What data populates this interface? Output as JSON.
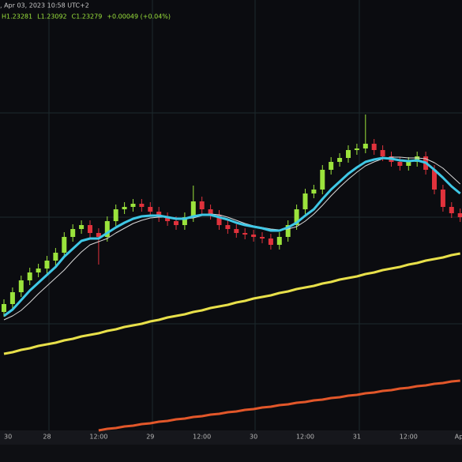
{
  "chart_data": {
    "type": "candlestick",
    "subtitle": ", Apr 03, 2023 10:58 UTC+2",
    "ohlc_header": [
      "H1.23281",
      "L1.23092",
      "C1.23279",
      "+0.00049 (+0.04%)"
    ],
    "categories": [
      "30",
      null,
      null,
      null,
      null,
      "28",
      null,
      null,
      null,
      null,
      null,
      "12:00",
      null,
      null,
      null,
      null,
      null,
      "29",
      null,
      null,
      null,
      null,
      null,
      "12:00",
      null,
      null,
      null,
      null,
      null,
      "30",
      null,
      null,
      null,
      null,
      null,
      "12:00",
      null,
      null,
      null,
      null,
      null,
      "31",
      null,
      null,
      null,
      null,
      null,
      "12:00",
      null,
      null,
      null,
      null,
      null,
      "Apr"
    ],
    "open": [
      1.215,
      1.216,
      1.2175,
      1.219,
      1.22,
      1.2205,
      1.2215,
      1.2225,
      1.2245,
      1.2255,
      1.226,
      1.225,
      1.2245,
      1.2265,
      1.228,
      1.2283,
      1.2287,
      1.2283,
      1.2277,
      1.227,
      1.2265,
      1.226,
      1.227,
      1.229,
      1.228,
      1.2273,
      1.226,
      1.2255,
      1.225,
      1.2248,
      1.2245,
      1.2243,
      1.2235,
      1.2245,
      1.226,
      1.228,
      1.23,
      1.2305,
      1.233,
      1.234,
      1.2345,
      1.2355,
      1.2357,
      1.2363,
      1.2355,
      1.2347,
      1.234,
      1.2335,
      1.234,
      1.2347,
      1.233,
      1.2305,
      1.2283,
      1.2275
    ],
    "high": [
      1.2166,
      1.2181,
      1.2196,
      1.2206,
      1.2211,
      1.2221,
      1.2231,
      1.2251,
      1.2261,
      1.2266,
      1.2266,
      1.2256,
      1.2271,
      1.2286,
      1.2289,
      1.2293,
      1.2293,
      1.2289,
      1.2283,
      1.2276,
      1.2271,
      1.2276,
      1.231,
      1.2296,
      1.2286,
      1.2279,
      1.2266,
      1.2261,
      1.2256,
      1.2254,
      1.2251,
      1.2249,
      1.2251,
      1.2266,
      1.2286,
      1.2306,
      1.2311,
      1.2336,
      1.2346,
      1.2351,
      1.2361,
      1.2363,
      1.24,
      1.2369,
      1.2361,
      1.2353,
      1.2346,
      1.2346,
      1.2353,
      1.2353,
      1.2336,
      1.2311,
      1.2289,
      1.2281
    ],
    "low": [
      1.2144,
      1.2154,
      1.2169,
      1.2184,
      1.2194,
      1.2199,
      1.2209,
      1.2219,
      1.2239,
      1.2249,
      1.2244,
      1.221,
      1.2239,
      1.2259,
      1.2274,
      1.2277,
      1.2277,
      1.2271,
      1.2264,
      1.2259,
      1.2254,
      1.2254,
      1.2264,
      1.2274,
      1.2267,
      1.2254,
      1.2249,
      1.2244,
      1.2242,
      1.2239,
      1.2237,
      1.2229,
      1.2229,
      1.2239,
      1.2254,
      1.2274,
      1.2294,
      1.2299,
      1.2324,
      1.2334,
      1.2339,
      1.2349,
      1.2351,
      1.2349,
      1.2341,
      1.2334,
      1.2329,
      1.2329,
      1.2334,
      1.2324,
      1.2299,
      1.2277,
      1.2269,
      1.2264
    ],
    "close": [
      1.216,
      1.2175,
      1.219,
      1.22,
      1.2205,
      1.2215,
      1.2225,
      1.2245,
      1.2255,
      1.226,
      1.225,
      1.2245,
      1.2265,
      1.228,
      1.2283,
      1.2287,
      1.2283,
      1.2277,
      1.227,
      1.2265,
      1.226,
      1.227,
      1.229,
      1.228,
      1.2273,
      1.226,
      1.2255,
      1.225,
      1.2248,
      1.2245,
      1.2243,
      1.2235,
      1.2245,
      1.226,
      1.228,
      1.23,
      1.2305,
      1.233,
      1.234,
      1.2345,
      1.2355,
      1.2357,
      1.2363,
      1.2355,
      1.2347,
      1.234,
      1.2335,
      1.234,
      1.2347,
      1.233,
      1.2305,
      1.2283,
      1.2275,
      1.227
    ],
    "up_color": "#9be33c",
    "down_color": "#e0323c",
    "lines": [
      {
        "color": "#d8d8d8",
        "width": 1,
        "values": [
          1.214,
          1.2145,
          1.2152,
          1.2162,
          1.2173,
          1.2183,
          1.2193,
          1.2203,
          1.2215,
          1.2226,
          1.2235,
          1.2239,
          1.2243,
          1.225,
          1.2256,
          1.2262,
          1.2266,
          1.2269,
          1.227,
          1.227,
          1.2269,
          1.2268,
          1.2269,
          1.2272,
          1.2274,
          1.2273,
          1.227,
          1.2266,
          1.2262,
          1.2259,
          1.2257,
          1.2255,
          1.2254,
          1.2255,
          1.2258,
          1.2265,
          1.2274,
          1.2285,
          1.2297,
          1.2308,
          1.2318,
          1.2327,
          1.2335,
          1.234,
          1.2344,
          1.2346,
          1.2346,
          1.2345,
          1.2345,
          1.2344,
          1.2339,
          1.2332,
          1.2322,
          1.2312
        ]
      },
      {
        "color": "#3fc8e6",
        "width": 3,
        "values": [
          1.2145,
          1.2153,
          1.2165,
          1.2177,
          1.2187,
          1.2197,
          1.2207,
          1.222,
          1.223,
          1.224,
          1.2243,
          1.2243,
          1.225,
          1.2257,
          1.2263,
          1.2268,
          1.2271,
          1.2272,
          1.2272,
          1.227,
          1.2268,
          1.2268,
          1.2271,
          1.2273,
          1.2273,
          1.227,
          1.2267,
          1.2263,
          1.226,
          1.2258,
          1.2256,
          1.2253,
          1.2253,
          1.2257,
          1.2263,
          1.2272,
          1.228,
          1.2293,
          1.2305,
          1.2315,
          1.2325,
          1.2333,
          1.234,
          1.2343,
          1.2345,
          1.2344,
          1.2342,
          1.2341,
          1.2342,
          1.2339,
          1.233,
          1.232,
          1.2309,
          1.23
        ]
      },
      {
        "color": "#e8e04a",
        "width": 3,
        "values": [
          1.2097,
          1.2099,
          1.2102,
          1.2104,
          1.2107,
          1.2109,
          1.2111,
          1.2114,
          1.2116,
          1.2119,
          1.2121,
          1.2123,
          1.2126,
          1.2128,
          1.2131,
          1.2133,
          1.2135,
          1.2138,
          1.214,
          1.2143,
          1.2145,
          1.2147,
          1.215,
          1.2152,
          1.2155,
          1.2157,
          1.2159,
          1.2162,
          1.2164,
          1.2167,
          1.2169,
          1.2171,
          1.2174,
          1.2176,
          1.2179,
          1.2181,
          1.2183,
          1.2186,
          1.2188,
          1.2191,
          1.2193,
          1.2195,
          1.2198,
          1.22,
          1.2203,
          1.2205,
          1.2207,
          1.221,
          1.2212,
          1.2215,
          1.2217,
          1.2219,
          1.2222,
          1.2224
        ]
      },
      {
        "color": "#e2572a",
        "width": 3,
        "values": [
          null,
          null,
          null,
          null,
          null,
          null,
          null,
          null,
          null,
          null,
          null,
          1.2,
          1.2002,
          1.2003,
          1.2005,
          1.2006,
          1.2008,
          1.2009,
          1.2011,
          1.2012,
          1.2014,
          1.2015,
          1.2017,
          1.2018,
          1.202,
          1.2021,
          1.2023,
          1.2024,
          1.2026,
          1.2027,
          1.2029,
          1.203,
          1.2032,
          1.2033,
          1.2035,
          1.2036,
          1.2038,
          1.2039,
          1.2041,
          1.2042,
          1.2044,
          1.2045,
          1.2047,
          1.2048,
          1.205,
          1.2051,
          1.2053,
          1.2054,
          1.2056,
          1.2057,
          1.2059,
          1.206,
          1.2062,
          1.2063
        ]
      }
    ],
    "ylim": [
      1.2,
      1.2545
    ]
  }
}
